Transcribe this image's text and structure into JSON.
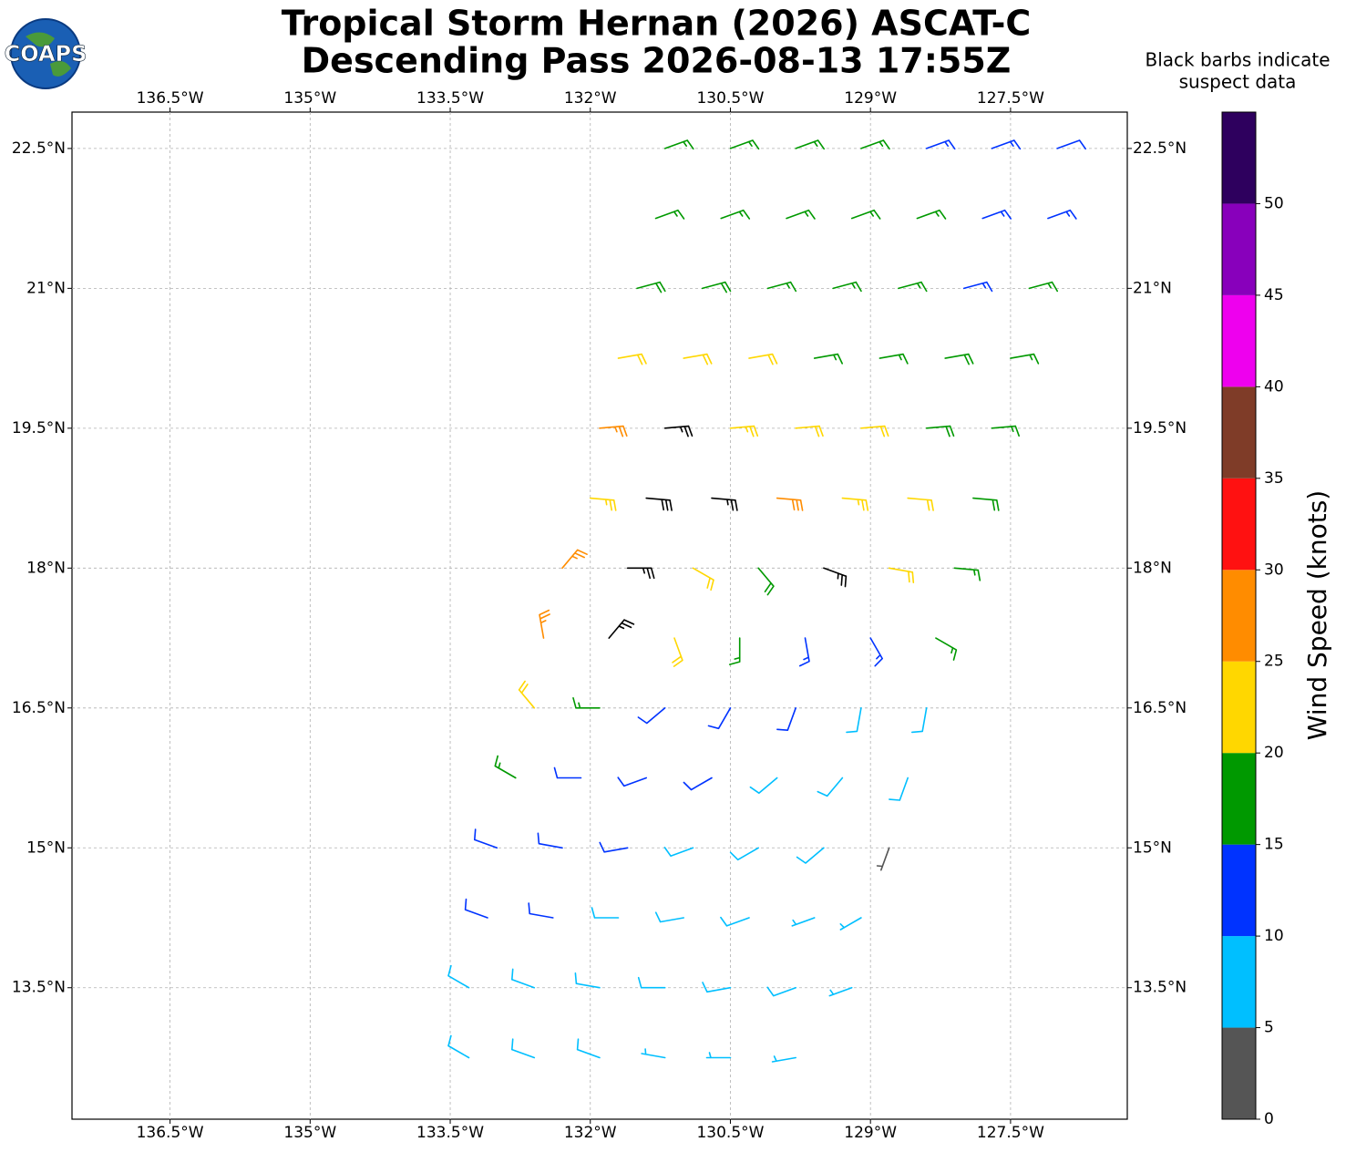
{
  "chart_data": {
    "type": "barbs",
    "logo_text": "COAPS",
    "title": "Tropical Storm Hernan (2026) ASCAT-C",
    "subtitle": "Descending Pass 2026-08-13 17:55Z",
    "note": [
      "Black barbs indicate",
      "suspect data"
    ],
    "colorbar_label": "Wind Speed (knots)",
    "xlim": [
      -137.55,
      -126.25
    ],
    "ylim": [
      12.09,
      22.89
    ],
    "xticks": [
      {
        "value": -136.5,
        "label": "136.5°W"
      },
      {
        "value": -135,
        "label": "135°W"
      },
      {
        "value": -133.5,
        "label": "133.5°W"
      },
      {
        "value": -132,
        "label": "132°W"
      },
      {
        "value": -130.5,
        "label": "130.5°W"
      },
      {
        "value": -129,
        "label": "129°W"
      },
      {
        "value": -127.5,
        "label": "127.5°W"
      }
    ],
    "yticks": [
      {
        "value": 22.5,
        "label": "22.5°N"
      },
      {
        "value": 21,
        "label": "21°N"
      },
      {
        "value": 19.5,
        "label": "19.5°N"
      },
      {
        "value": 18,
        "label": "18°N"
      },
      {
        "value": 16.5,
        "label": "16.5°N"
      },
      {
        "value": 15,
        "label": "15°N"
      },
      {
        "value": 13.5,
        "label": "13.5°N"
      }
    ],
    "grid": true,
    "suspect_color": "#000000",
    "colorbar": {
      "bounds": [
        0,
        5,
        10,
        15,
        20,
        25,
        30,
        35,
        40,
        45,
        50,
        55
      ],
      "colors": [
        "#555555",
        "#00bfff",
        "#0033ff",
        "#009900",
        "#ffd700",
        "#ff8c00",
        "#ff1111",
        "#7f3c28",
        "#ee00ee",
        "#8800bb",
        "#2e005e"
      ],
      "ticks": [
        0,
        5,
        10,
        15,
        20,
        25,
        30,
        35,
        40,
        45,
        50
      ]
    },
    "x": [
      -131.2,
      -130.5,
      -129.8,
      -129.1,
      -128.4,
      -127.7,
      -127.0,
      -131.3,
      -130.6,
      -129.9,
      -129.2,
      -128.5,
      -127.8,
      -127.1,
      -131.5,
      -130.8,
      -130.1,
      -129.4,
      -128.7,
      -128.0,
      -127.3,
      -131.7,
      -131.0,
      -130.3,
      -129.6,
      -128.9,
      -128.2,
      -127.5,
      -131.9,
      -131.2,
      -130.5,
      -129.8,
      -129.1,
      -128.4,
      -127.7,
      -132.0,
      -131.4,
      -130.7,
      -130.0,
      -129.3,
      -128.6,
      -127.9,
      -132.3,
      -131.6,
      -130.9,
      -130.2,
      -129.5,
      -128.8,
      -128.1,
      -132.5,
      -131.8,
      -131.1,
      -130.4,
      -129.7,
      -129.0,
      -128.3,
      -132.6,
      -131.9,
      -131.2,
      -130.5,
      -129.8,
      -129.1,
      -128.4,
      -132.8,
      -132.1,
      -131.4,
      -130.7,
      -130.0,
      -129.3,
      -128.6,
      -133.0,
      -132.3,
      -131.6,
      -130.9,
      -130.2,
      -129.5,
      -128.8,
      -133.1,
      -132.4,
      -131.7,
      -131.0,
      -130.3,
      -129.6,
      -129.1,
      -133.3,
      -132.6,
      -131.9,
      -131.2,
      -130.5,
      -129.8,
      -129.2,
      -133.3,
      -132.6,
      -131.9,
      -131.2,
      -130.5,
      -129.8
    ],
    "y": [
      22.5,
      22.5,
      22.5,
      22.5,
      22.5,
      22.5,
      22.5,
      21.75,
      21.75,
      21.75,
      21.75,
      21.75,
      21.75,
      21.75,
      21,
      21,
      21,
      21,
      21,
      21,
      21,
      20.25,
      20.25,
      20.25,
      20.25,
      20.25,
      20.25,
      20.25,
      19.5,
      19.5,
      19.5,
      19.5,
      19.5,
      19.5,
      19.5,
      18.75,
      18.75,
      18.75,
      18.75,
      18.75,
      18.75,
      18.75,
      18,
      18,
      18,
      18,
      18,
      18,
      18,
      17.25,
      17.25,
      17.25,
      17.25,
      17.25,
      17.25,
      17.25,
      16.5,
      16.5,
      16.5,
      16.5,
      16.5,
      16.5,
      16.5,
      15.75,
      15.75,
      15.75,
      15.75,
      15.75,
      15.75,
      15.75,
      15,
      15,
      15,
      15,
      15,
      15,
      15,
      14.25,
      14.25,
      14.25,
      14.25,
      14.25,
      14.25,
      14.25,
      13.5,
      13.5,
      13.5,
      13.5,
      13.5,
      13.5,
      13.5,
      12.75,
      12.75,
      12.75,
      12.75,
      12.75,
      12.75
    ],
    "speed": [
      17,
      17,
      17,
      16,
      13,
      13,
      12,
      17,
      17,
      17,
      17,
      16,
      13,
      13,
      18,
      18,
      17,
      17,
      17,
      13,
      16,
      22,
      22,
      22,
      17,
      17,
      18,
      17,
      27,
      24,
      23,
      22,
      22,
      19,
      17,
      23,
      32,
      27,
      28,
      24,
      22,
      18,
      27,
      23,
      22,
      18,
      24,
      22,
      17,
      25,
      25,
      22,
      17,
      14,
      13,
      17,
      21,
      17,
      12,
      12,
      12,
      8,
      9,
      17,
      12,
      12,
      12,
      8,
      8,
      8,
      12,
      12,
      12,
      9,
      8,
      8,
      4,
      12,
      12,
      9,
      9,
      8,
      7,
      7,
      9,
      9,
      9,
      9,
      8,
      8,
      7,
      8,
      8,
      8,
      7,
      7,
      7
    ],
    "direction": [
      70,
      70,
      70,
      70,
      70,
      70,
      70,
      70,
      70,
      70,
      70,
      70,
      70,
      70,
      75,
      75,
      75,
      75,
      75,
      75,
      75,
      80,
      80,
      80,
      80,
      80,
      80,
      80,
      85,
      85,
      85,
      85,
      85,
      85,
      85,
      95,
      95,
      95,
      95,
      95,
      95,
      95,
      40,
      90,
      120,
      140,
      110,
      100,
      95,
      350,
      40,
      160,
      180,
      170,
      150,
      120,
      320,
      270,
      230,
      210,
      200,
      190,
      190,
      300,
      270,
      250,
      240,
      230,
      220,
      200,
      290,
      280,
      260,
      250,
      240,
      230,
      200,
      290,
      280,
      270,
      260,
      250,
      250,
      240,
      300,
      290,
      280,
      270,
      260,
      250,
      250,
      300,
      290,
      290,
      280,
      270,
      260
    ],
    "suspect": [
      false,
      false,
      false,
      false,
      false,
      false,
      false,
      false,
      false,
      false,
      false,
      false,
      false,
      false,
      false,
      false,
      false,
      false,
      false,
      false,
      false,
      false,
      false,
      false,
      false,
      false,
      false,
      false,
      false,
      true,
      false,
      false,
      false,
      false,
      false,
      false,
      true,
      true,
      false,
      false,
      false,
      false,
      false,
      true,
      false,
      false,
      true,
      false,
      false,
      false,
      true,
      false,
      false,
      false,
      false,
      false,
      false,
      false,
      false,
      false,
      false,
      false,
      false,
      false,
      false,
      false,
      false,
      false,
      false,
      false,
      false,
      false,
      false,
      false,
      false,
      false,
      false,
      false,
      false,
      false,
      false,
      false,
      false,
      false,
      false,
      false,
      false,
      false,
      false,
      false,
      false,
      false,
      false,
      false,
      false,
      false,
      false
    ]
  }
}
